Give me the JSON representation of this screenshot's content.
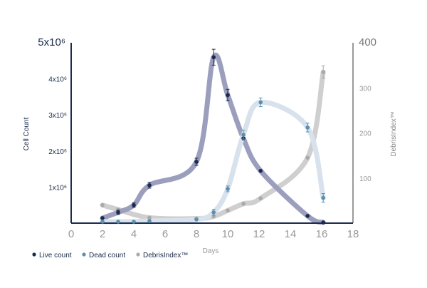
{
  "chart_data": {
    "type": "line",
    "title": "",
    "xlabel": "Days",
    "ylabel": "Cell Count",
    "y2label": "DebrisIndex™",
    "xlim": [
      0,
      18
    ],
    "ylim": [
      0,
      5000000
    ],
    "y2lim": [
      0,
      400
    ],
    "x_ticks": [
      "0",
      "2",
      "4",
      "6",
      "8",
      "10",
      "12",
      "14",
      "16",
      "18"
    ],
    "y_ticks": [
      {
        "label": "1x10⁶",
        "value": 1000000
      },
      {
        "label": "2x10⁶",
        "value": 2000000
      },
      {
        "label": "3x10⁶",
        "value": 3000000
      },
      {
        "label": "4x10⁶",
        "value": 4000000
      },
      {
        "label": "5x10⁶",
        "value": 5000000
      }
    ],
    "y2_ticks": [
      {
        "label": "100",
        "value": 100
      },
      {
        "label": "200",
        "value": 200
      },
      {
        "label": "300",
        "value": 300
      },
      {
        "label": "400",
        "value": 400
      }
    ],
    "legend_position": "bottom-left",
    "grid": false,
    "series": [
      {
        "name": "Live count",
        "axis": "left",
        "marker_color": "#1b2a4e",
        "line_color": "#9b9fbd",
        "x": [
          2,
          3,
          4,
          5,
          8,
          9.1,
          10,
          11,
          12.1,
          15.1,
          16.1
        ],
        "y": [
          140000,
          300000,
          500000,
          1050000,
          1700000,
          4600000,
          3550000,
          2350000,
          1450000,
          200000,
          20000
        ],
        "err": [
          0,
          60000,
          60000,
          80000,
          100000,
          220000,
          160000,
          0,
          0,
          0,
          0
        ]
      },
      {
        "name": "Dead count",
        "axis": "left",
        "marker_color": "#5b8fb0",
        "line_color": "#d8e2ec",
        "x": [
          2,
          3,
          4,
          5,
          8,
          9.1,
          10,
          11,
          12.1,
          15.1,
          16.1
        ],
        "y": [
          40000,
          40000,
          40000,
          60000,
          100000,
          300000,
          950000,
          2450000,
          3350000,
          2650000,
          700000
        ],
        "err": [
          0,
          0,
          0,
          0,
          0,
          80000,
          80000,
          120000,
          120000,
          120000,
          120000
        ]
      },
      {
        "name": "DebrisIndex™",
        "axis": "right",
        "marker_color": "#a9a9a9",
        "line_color": "#cfcfcf",
        "x": [
          2,
          3,
          5,
          8,
          9.1,
          10,
          11,
          12.1,
          15.1,
          16.1
        ],
        "y": [
          40,
          30,
          12,
          10,
          15,
          28,
          43,
          55,
          145,
          335
        ],
        "err": [
          0,
          0,
          0,
          0,
          0,
          0,
          0,
          0,
          0,
          14
        ]
      }
    ]
  }
}
